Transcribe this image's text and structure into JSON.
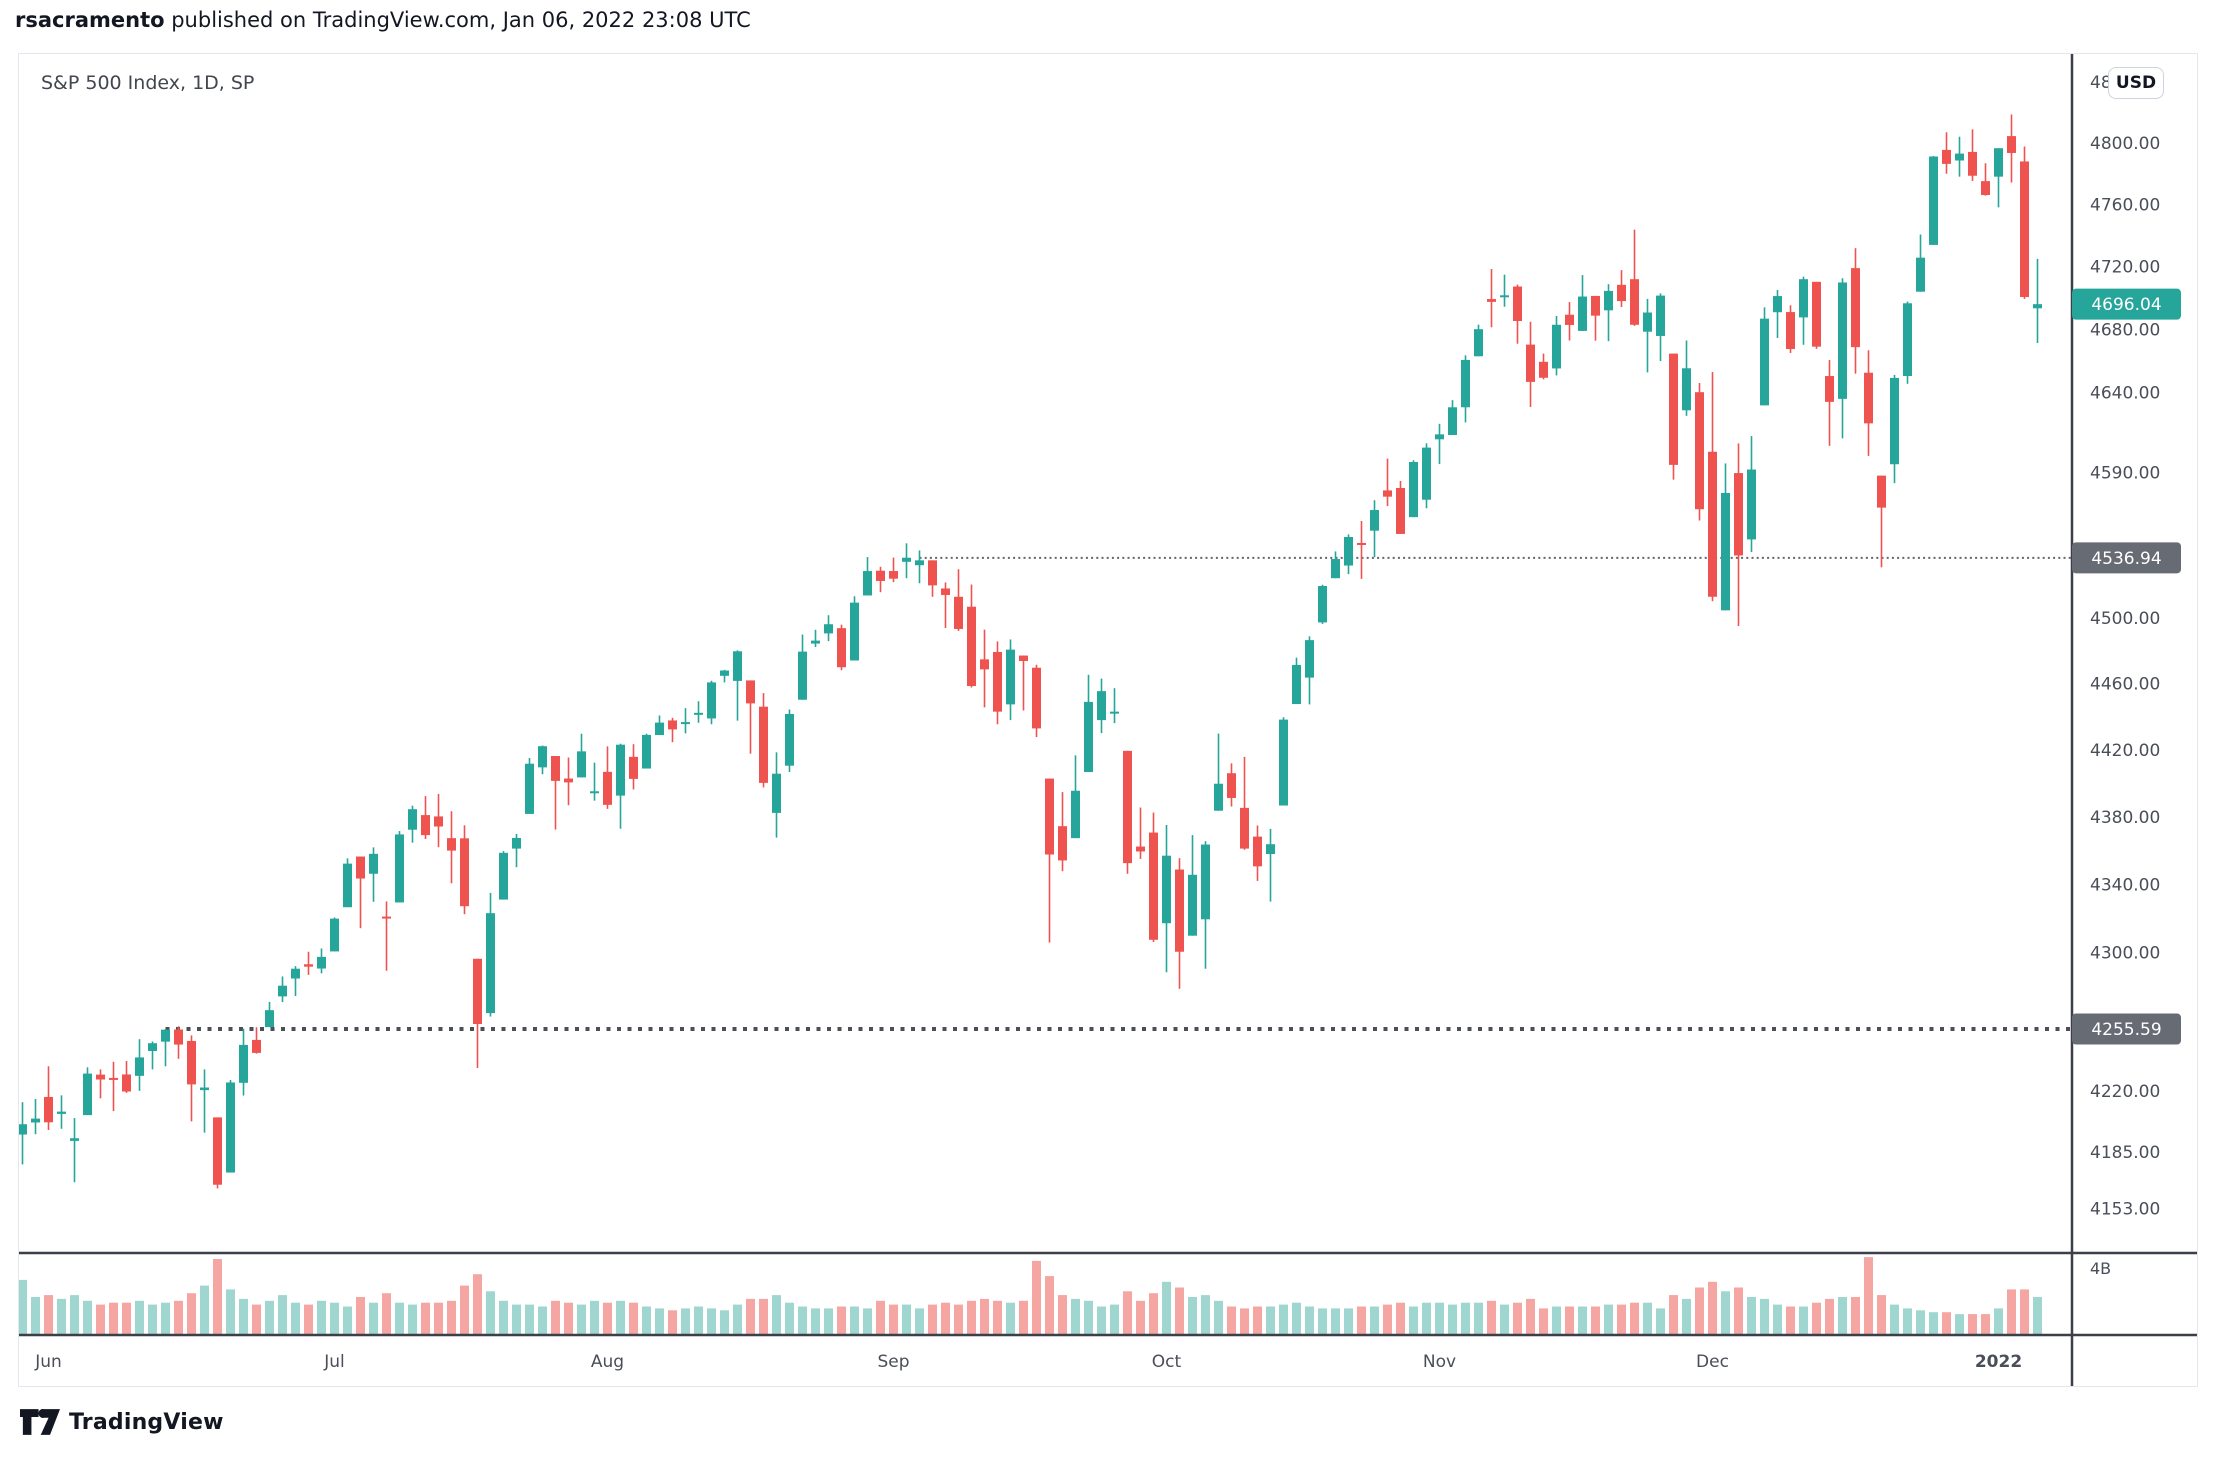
{
  "header": {
    "author": "rsacramento",
    "published_text": " published on TradingView.com, Jan 06, 2022 23:08 UTC"
  },
  "chart": {
    "title": "S&P 500 Index, 1D, SP"
  },
  "price_scale": {
    "currency": "USD",
    "labels": [
      {
        "label": "4840.00",
        "price": 4840
      },
      {
        "label": "4800.00",
        "price": 4800
      },
      {
        "label": "4760.00",
        "price": 4760
      },
      {
        "label": "4720.00",
        "price": 4720
      },
      {
        "label": "4680.00",
        "price": 4680
      },
      {
        "label": "4640.00",
        "price": 4640
      },
      {
        "label": "4590.00",
        "price": 4590
      },
      {
        "label": "4500.00",
        "price": 4500
      },
      {
        "label": "4460.00",
        "price": 4460
      },
      {
        "label": "4420.00",
        "price": 4420
      },
      {
        "label": "4380.00",
        "price": 4380
      },
      {
        "label": "4340.00",
        "price": 4340
      },
      {
        "label": "4300.00",
        "price": 4300
      },
      {
        "label": "4220.00",
        "price": 4220
      },
      {
        "label": "4185.00",
        "price": 4185
      },
      {
        "label": "4153.00",
        "price": 4153
      }
    ],
    "volume_label": "4B",
    "last_price_badge": {
      "label": "4696.04",
      "price": 4696.04
    },
    "level_badges": [
      {
        "label": "4536.94",
        "price": 4536.94
      },
      {
        "label": "4255.59",
        "price": 4255.59
      }
    ]
  },
  "time_scale": {
    "ticks": [
      {
        "label": "Jun",
        "index": 2,
        "bold": false
      },
      {
        "label": "Jul",
        "index": 24,
        "bold": false
      },
      {
        "label": "Aug",
        "index": 45,
        "bold": false
      },
      {
        "label": "Sep",
        "index": 67,
        "bold": false
      },
      {
        "label": "Oct",
        "index": 88,
        "bold": false
      },
      {
        "label": "Nov",
        "index": 109,
        "bold": false
      },
      {
        "label": "Dec",
        "index": 130,
        "bold": false
      },
      {
        "label": "2022",
        "index": 152,
        "bold": true
      }
    ]
  },
  "footer": {
    "brand": "TradingView"
  },
  "colors": {
    "up": "#26a69a",
    "down": "#ef5350",
    "volume_up": "#a0d6d0",
    "volume_down": "#f5a6a3",
    "last_badge_bg": "#26a69a",
    "level_badge_bg": "#676b74",
    "axis_line": "#3b3f49",
    "tick_text": "#4a4e58",
    "level_line_bold": "#4a4e59",
    "level_line_fine": "#62656e"
  },
  "chart_data": {
    "type": "candlestick",
    "symbol": "S&P 500 Index",
    "interval": "1D",
    "exchange": "SP",
    "currency": "USD",
    "price_axis_log": true,
    "last_close": 4696.04,
    "visible_price_range": [
      4130,
      4860
    ],
    "volume_axis_top_label": "4B",
    "ohlcv_fields": [
      "open",
      "high",
      "low",
      "close",
      "volume_B"
    ],
    "levels": [
      {
        "price": 4536.94,
        "start_candle_index": 69,
        "style": "dotted-fine"
      },
      {
        "price": 4255.59,
        "start_candle_index": 11,
        "style": "dotted-bold"
      }
    ],
    "candles": [
      [
        4195.0,
        4213.5,
        4178.0,
        4200.9,
        2.9
      ],
      [
        4201.9,
        4215.3,
        4195.2,
        4204.1,
        2.0
      ],
      [
        4216.5,
        4234.1,
        4197.6,
        4202.0,
        2.1
      ],
      [
        4206.8,
        4217.4,
        4198.3,
        4208.1,
        1.9
      ],
      [
        4191.4,
        4204.4,
        4167.9,
        4192.9,
        2.1
      ],
      [
        4206.1,
        4233.5,
        4206.1,
        4229.9,
        1.8
      ],
      [
        4229.3,
        4232.3,
        4215.7,
        4226.5,
        1.6
      ],
      [
        4227.4,
        4236.7,
        4208.4,
        4227.3,
        1.7
      ],
      [
        4229.4,
        4237.1,
        4218.8,
        4219.6,
        1.7
      ],
      [
        4228.6,
        4249.7,
        4220.0,
        4239.2,
        1.8
      ],
      [
        4242.9,
        4248.4,
        4232.3,
        4247.4,
        1.6
      ],
      [
        4248.3,
        4255.6,
        4234.1,
        4255.2,
        1.7
      ],
      [
        4255.3,
        4257.2,
        4238.4,
        4246.6,
        1.8
      ],
      [
        4248.7,
        4251.9,
        4202.5,
        4223.7,
        2.2
      ],
      [
        4220.4,
        4232.3,
        4196.1,
        4221.9,
        2.6
      ],
      [
        4204.8,
        4204.8,
        4164.4,
        4166.5,
        4.0
      ],
      [
        4173.4,
        4226.2,
        4173.4,
        4224.8,
        2.4
      ],
      [
        4224.6,
        4255.8,
        4217.3,
        4246.4,
        1.9
      ],
      [
        4249.3,
        4256.6,
        4241.4,
        4241.8,
        1.6
      ],
      [
        4256.7,
        4271.3,
        4256.7,
        4266.5,
        1.8
      ],
      [
        4274.5,
        4286.1,
        4271.2,
        4280.7,
        2.1
      ],
      [
        4284.9,
        4292.1,
        4274.7,
        4290.6,
        1.7
      ],
      [
        4293.2,
        4300.5,
        4287.0,
        4291.8,
        1.6
      ],
      [
        4290.7,
        4302.4,
        4287.9,
        4297.5,
        1.8
      ],
      [
        4300.7,
        4320.6,
        4300.7,
        4319.9,
        1.7
      ],
      [
        4326.6,
        4355.4,
        4326.6,
        4352.3,
        1.5
      ],
      [
        4356.5,
        4356.5,
        4314.3,
        4343.5,
        2.0
      ],
      [
        4346.3,
        4361.9,
        4329.8,
        4358.1,
        1.7
      ],
      [
        4321.1,
        4330.0,
        4289.4,
        4320.8,
        2.2
      ],
      [
        4329.4,
        4371.6,
        4329.4,
        4369.6,
        1.7
      ],
      [
        4372.4,
        4386.7,
        4364.7,
        4384.6,
        1.6
      ],
      [
        4381.1,
        4392.4,
        4366.9,
        4369.2,
        1.7
      ],
      [
        4380.3,
        4393.7,
        4362.0,
        4374.3,
        1.7
      ],
      [
        4367.4,
        4383.4,
        4340.7,
        4360.0,
        1.8
      ],
      [
        4367.3,
        4375.0,
        4322.5,
        4327.2,
        2.6
      ],
      [
        4296.4,
        4296.4,
        4233.1,
        4258.5,
        3.2
      ],
      [
        4264.8,
        4335.0,
        4262.8,
        4323.1,
        2.3
      ],
      [
        4331.1,
        4359.7,
        4331.1,
        4358.7,
        1.8
      ],
      [
        4361.2,
        4369.9,
        4350.2,
        4367.5,
        1.6
      ],
      [
        4381.8,
        4415.2,
        4381.8,
        4411.8,
        1.6
      ],
      [
        4409.6,
        4422.7,
        4405.5,
        4422.3,
        1.5
      ],
      [
        4416.4,
        4416.4,
        4372.5,
        4401.5,
        1.8
      ],
      [
        4402.9,
        4415.5,
        4387.0,
        4400.6,
        1.7
      ],
      [
        4403.6,
        4429.8,
        4403.6,
        4419.2,
        1.6
      ],
      [
        4395.1,
        4412.4,
        4389.7,
        4395.3,
        1.8
      ],
      [
        4406.9,
        4422.2,
        4384.8,
        4387.2,
        1.7
      ],
      [
        4392.7,
        4423.8,
        4373.0,
        4423.2,
        1.8
      ],
      [
        4415.9,
        4423.5,
        4396.4,
        4402.7,
        1.7
      ],
      [
        4408.9,
        4429.8,
        4408.9,
        4429.1,
        1.5
      ],
      [
        4429.0,
        4440.8,
        4429.0,
        4436.5,
        1.4
      ],
      [
        4437.8,
        4439.4,
        4424.7,
        4432.4,
        1.3
      ],
      [
        4436.0,
        4445.2,
        4430.0,
        4436.8,
        1.4
      ],
      [
        4442.2,
        4449.4,
        4436.4,
        4442.4,
        1.5
      ],
      [
        4439.0,
        4461.8,
        4435.5,
        4460.8,
        1.4
      ],
      [
        4464.8,
        4468.4,
        4460.8,
        4468.0,
        1.3
      ],
      [
        4461.7,
        4480.3,
        4437.7,
        4479.7,
        1.6
      ],
      [
        4462.0,
        4462.0,
        4417.8,
        4448.1,
        1.9
      ],
      [
        4446.1,
        4454.3,
        4397.6,
        4400.3,
        1.9
      ],
      [
        4382.4,
        4418.6,
        4367.7,
        4405.8,
        2.1
      ],
      [
        4410.6,
        4444.4,
        4406.8,
        4441.7,
        1.7
      ],
      [
        4450.3,
        4489.9,
        4450.3,
        4479.5,
        1.5
      ],
      [
        4484.4,
        4492.8,
        4482.3,
        4486.2,
        1.4
      ],
      [
        4490.6,
        4501.7,
        4485.9,
        4496.2,
        1.4
      ],
      [
        4493.8,
        4495.9,
        4468.2,
        4470.0,
        1.5
      ],
      [
        4474.1,
        4513.3,
        4474.1,
        4509.4,
        1.5
      ],
      [
        4513.8,
        4537.4,
        4513.8,
        4528.8,
        1.4
      ],
      [
        4529.0,
        4531.4,
        4515.8,
        4522.7,
        1.8
      ],
      [
        4528.8,
        4537.1,
        4522.0,
        4524.1,
        1.6
      ],
      [
        4534.5,
        4545.9,
        4524.4,
        4537.0,
        1.6
      ],
      [
        4532.4,
        4541.5,
        4521.3,
        4535.4,
        1.4
      ],
      [
        4535.4,
        4535.4,
        4513.0,
        4520.0,
        1.6
      ],
      [
        4518.1,
        4521.8,
        4493.9,
        4514.1,
        1.7
      ],
      [
        4513.0,
        4529.9,
        4492.1,
        4493.3,
        1.6
      ],
      [
        4506.9,
        4520.5,
        4457.7,
        4458.6,
        1.8
      ],
      [
        4474.8,
        4492.9,
        4445.7,
        4468.7,
        1.9
      ],
      [
        4479.3,
        4485.7,
        4435.5,
        4443.1,
        1.8
      ],
      [
        4447.5,
        4486.9,
        4438.0,
        4480.7,
        1.7
      ],
      [
        4477.1,
        4477.1,
        4443.8,
        4473.8,
        1.8
      ],
      [
        4469.7,
        4471.5,
        4427.8,
        4433.0,
        3.9
      ],
      [
        4402.9,
        4402.9,
        4305.9,
        4357.7,
        3.1
      ],
      [
        4374.5,
        4394.8,
        4347.8,
        4354.2,
        2.1
      ],
      [
        4367.4,
        4416.8,
        4367.4,
        4395.6,
        1.9
      ],
      [
        4406.8,
        4465.4,
        4406.8,
        4449.0,
        1.8
      ],
      [
        4438.0,
        4463.1,
        4430.2,
        4455.5,
        1.5
      ],
      [
        4442.1,
        4457.3,
        4436.2,
        4443.1,
        1.6
      ],
      [
        4419.5,
        4419.5,
        4346.3,
        4352.6,
        2.3
      ],
      [
        4362.4,
        4385.6,
        4355.1,
        4359.5,
        1.8
      ],
      [
        4370.7,
        4382.6,
        4306.2,
        4307.5,
        2.2
      ],
      [
        4317.2,
        4375.2,
        4288.5,
        4357.0,
        2.8
      ],
      [
        4348.8,
        4355.5,
        4278.9,
        4300.5,
        2.5
      ],
      [
        4309.9,
        4369.2,
        4309.9,
        4345.7,
        2.0
      ],
      [
        4319.5,
        4365.6,
        4290.6,
        4363.6,
        2.1
      ],
      [
        4383.7,
        4429.9,
        4383.7,
        4399.8,
        1.8
      ],
      [
        4406.1,
        4412.0,
        4386.2,
        4391.3,
        1.5
      ],
      [
        4385.4,
        4415.9,
        4360.5,
        4361.2,
        1.4
      ],
      [
        4368.3,
        4374.9,
        4342.1,
        4350.7,
        1.5
      ],
      [
        4358.0,
        4372.9,
        4329.9,
        4363.8,
        1.5
      ],
      [
        4386.8,
        4439.7,
        4386.8,
        4438.3,
        1.6
      ],
      [
        4447.7,
        4475.8,
        4447.7,
        4471.4,
        1.7
      ],
      [
        4463.7,
        4488.8,
        4447.5,
        4486.5,
        1.5
      ],
      [
        4497.3,
        4520.4,
        4496.4,
        4519.6,
        1.4
      ],
      [
        4524.4,
        4540.9,
        4524.4,
        4536.2,
        1.4
      ],
      [
        4532.2,
        4551.4,
        4526.9,
        4549.8,
        1.4
      ],
      [
        4546.1,
        4559.7,
        4524.0,
        4544.9,
        1.5
      ],
      [
        4553.7,
        4572.6,
        4537.4,
        4566.5,
        1.5
      ],
      [
        4578.7,
        4598.5,
        4569.0,
        4574.8,
        1.6
      ],
      [
        4580.2,
        4584.6,
        4551.7,
        4551.7,
        1.7
      ],
      [
        4562.1,
        4597.5,
        4562.1,
        4596.4,
        1.5
      ],
      [
        4572.9,
        4608.1,
        4567.6,
        4605.4,
        1.7
      ],
      [
        4610.6,
        4620.3,
        4595.1,
        4613.7,
        1.7
      ],
      [
        4613.3,
        4635.2,
        4613.3,
        4630.7,
        1.6
      ],
      [
        4630.7,
        4663.5,
        4621.2,
        4660.6,
        1.7
      ],
      [
        4662.9,
        4683.0,
        4662.9,
        4680.1,
        1.7
      ],
      [
        4699.3,
        4718.5,
        4681.3,
        4697.5,
        1.8
      ],
      [
        4701.5,
        4714.9,
        4694.4,
        4701.7,
        1.6
      ],
      [
        4707.3,
        4708.5,
        4670.9,
        4685.3,
        1.7
      ],
      [
        4670.3,
        4684.8,
        4630.9,
        4646.7,
        1.9
      ],
      [
        4659.4,
        4664.6,
        4648.3,
        4649.3,
        1.4
      ],
      [
        4655.2,
        4688.5,
        4650.8,
        4682.9,
        1.5
      ],
      [
        4689.3,
        4697.4,
        4672.9,
        4682.8,
        1.5
      ],
      [
        4679.0,
        4714.6,
        4679.0,
        4700.9,
        1.5
      ],
      [
        4701.3,
        4701.3,
        4672.8,
        4688.7,
        1.5
      ],
      [
        4692.1,
        4708.8,
        4672.5,
        4704.5,
        1.6
      ],
      [
        4708.4,
        4717.8,
        4694.2,
        4698.0,
        1.6
      ],
      [
        4712.0,
        4743.8,
        4682.2,
        4682.9,
        1.7
      ],
      [
        4678.5,
        4699.4,
        4652.7,
        4690.7,
        1.7
      ],
      [
        4675.8,
        4702.9,
        4659.9,
        4701.5,
        1.4
      ],
      [
        4664.6,
        4664.6,
        4585.4,
        4594.6,
        2.1
      ],
      [
        4628.8,
        4672.9,
        4625.3,
        4655.3,
        1.9
      ],
      [
        4640.2,
        4646.0,
        4560.0,
        4567.0,
        2.5
      ],
      [
        4602.8,
        4652.9,
        4510.3,
        4513.0,
        2.8
      ],
      [
        4504.7,
        4595.5,
        4504.7,
        4577.1,
        2.3
      ],
      [
        4589.5,
        4608.0,
        4495.1,
        4538.4,
        2.5
      ],
      [
        4548.3,
        4612.6,
        4540.5,
        4591.7,
        2.0
      ],
      [
        4631.9,
        4694.0,
        4631.9,
        4686.8,
        1.9
      ],
      [
        4690.9,
        4705.1,
        4674.5,
        4701.2,
        1.6
      ],
      [
        4691.0,
        4695.3,
        4665.0,
        4667.5,
        1.5
      ],
      [
        4687.6,
        4713.6,
        4670.2,
        4712.0,
        1.5
      ],
      [
        4710.3,
        4710.3,
        4667.6,
        4669.0,
        1.7
      ],
      [
        4650.4,
        4660.5,
        4606.5,
        4634.1,
        1.9
      ],
      [
        4636.0,
        4712.6,
        4611.2,
        4709.9,
        2.0
      ],
      [
        4719.1,
        4731.9,
        4651.9,
        4668.7,
        2.0
      ],
      [
        4652.5,
        4666.7,
        4600.2,
        4620.6,
        4.1
      ],
      [
        4587.9,
        4587.9,
        4531.1,
        4568.0,
        2.1
      ],
      [
        4595.0,
        4651.1,
        4583.2,
        4649.2,
        1.6
      ],
      [
        4650.4,
        4697.7,
        4645.5,
        4696.6,
        1.4
      ],
      [
        4704.0,
        4740.7,
        4704.0,
        4725.8,
        1.3
      ],
      [
        4734.0,
        4791.5,
        4734.0,
        4791.2,
        1.2
      ],
      [
        4795.5,
        4807.0,
        4780.0,
        4786.4,
        1.2
      ],
      [
        4788.6,
        4804.1,
        4778.1,
        4793.1,
        1.1
      ],
      [
        4794.2,
        4808.9,
        4775.3,
        4778.7,
        1.1
      ],
      [
        4775.2,
        4786.8,
        4765.8,
        4766.2,
        1.1
      ],
      [
        4778.1,
        4796.6,
        4758.2,
        4796.6,
        1.4
      ],
      [
        4804.5,
        4818.6,
        4774.3,
        4793.5,
        2.4
      ],
      [
        4788.0,
        4797.7,
        4699.4,
        4700.6,
        2.4
      ],
      [
        4693.4,
        4725.0,
        4671.3,
        4696.04,
        2.0
      ]
    ]
  }
}
